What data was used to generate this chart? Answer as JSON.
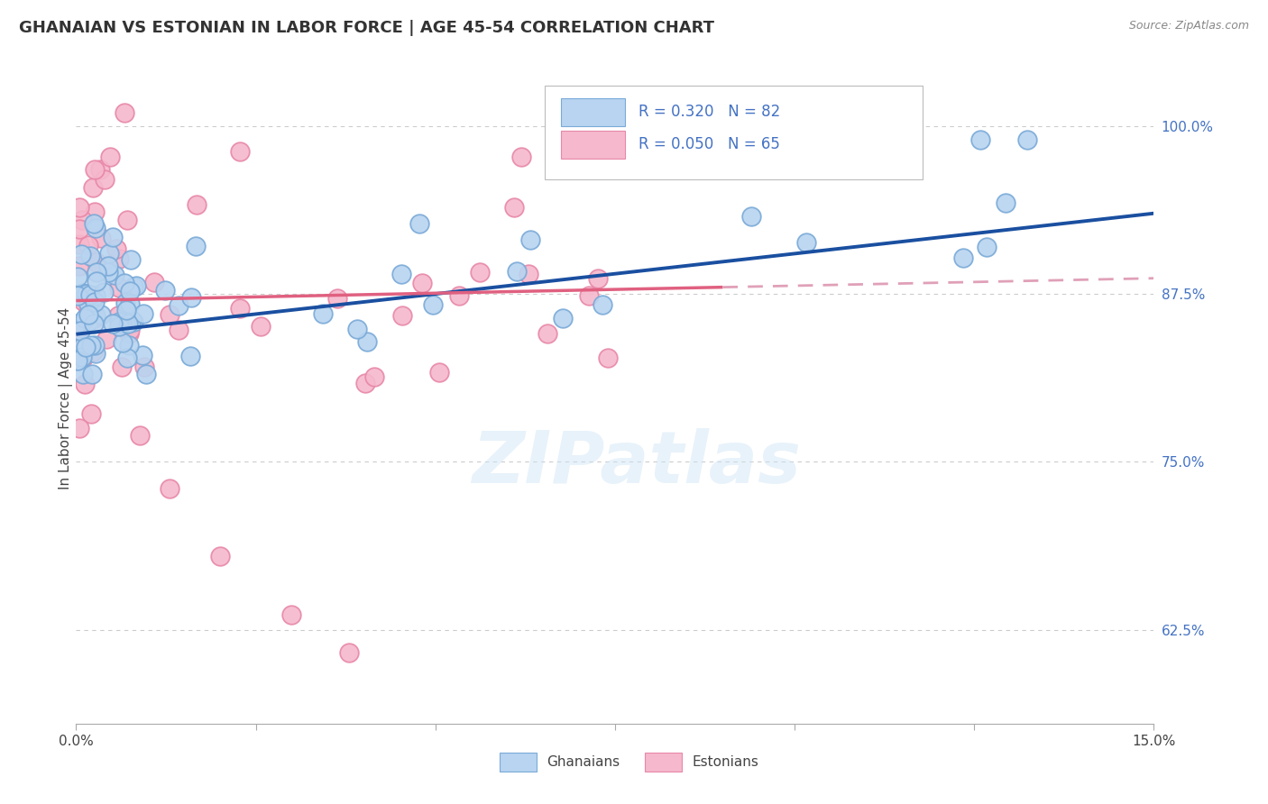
{
  "title": "GHANAIAN VS ESTONIAN IN LABOR FORCE | AGE 45-54 CORRELATION CHART",
  "source": "Source: ZipAtlas.com",
  "ylabel": "In Labor Force | Age 45-54",
  "xlim": [
    0.0,
    0.15
  ],
  "ylim": [
    0.555,
    1.04
  ],
  "ytick_labels": [
    "62.5%",
    "75.0%",
    "87.5%",
    "100.0%"
  ],
  "ytick_positions": [
    0.625,
    0.75,
    0.875,
    1.0
  ],
  "watermark": "ZIPatlas",
  "ghanaian_color": "#b8d4f0",
  "estonian_color": "#f5b8cc",
  "ghanaian_edge": "#7aaad8",
  "estonian_edge": "#e888a8",
  "trend_blue": "#1a4fa0",
  "trend_pink": "#e06080",
  "trend_pink_dashed": "#e0a0b8",
  "seed": 12345,
  "legend_r1": "R = 0.320",
  "legend_n1": "N = 82",
  "legend_r2": "R = 0.050",
  "legend_n2": "N = 65",
  "bottom_label1": "Ghanaians",
  "bottom_label2": "Estonians"
}
